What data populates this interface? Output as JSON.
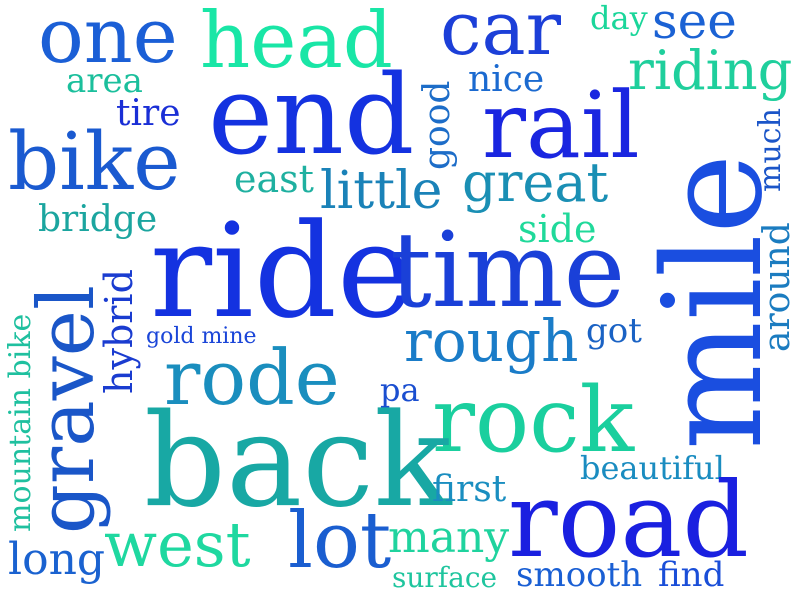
{
  "cloud": {
    "words": [
      {
        "text": "one",
        "color": "#1b5fd6"
      },
      {
        "text": "head",
        "color": "#19e6a6"
      },
      {
        "text": "car",
        "color": "#1c3fd8"
      },
      {
        "text": "day",
        "color": "#1ad69a"
      },
      {
        "text": "see",
        "color": "#1b62d4"
      },
      {
        "text": "riding",
        "color": "#1fcf9c"
      },
      {
        "text": "area",
        "color": "#1bbf9c"
      },
      {
        "text": "nice",
        "color": "#1b6ad0"
      },
      {
        "text": "tire",
        "color": "#1a2fd6"
      },
      {
        "text": "end",
        "color": "#1432e0"
      },
      {
        "text": "good",
        "color": "#1d6dc8"
      },
      {
        "text": "rail",
        "color": "#1a26e0"
      },
      {
        "text": "mile",
        "color": "#1a4ee0"
      },
      {
        "text": "much",
        "color": "#1b55c8"
      },
      {
        "text": "bike",
        "color": "#1a5ad0"
      },
      {
        "text": "east",
        "color": "#1fb0a0"
      },
      {
        "text": "little",
        "color": "#1a82b8"
      },
      {
        "text": "great",
        "color": "#1a8fb4"
      },
      {
        "text": "bridge",
        "color": "#1ba59f"
      },
      {
        "text": "side",
        "color": "#20d99a"
      },
      {
        "text": "ride",
        "color": "#1432e0"
      },
      {
        "text": "time",
        "color": "#1a40d8"
      },
      {
        "text": "around",
        "color": "#1b7cc0"
      },
      {
        "text": "mountain bike",
        "color": "#1fc09f"
      },
      {
        "text": "hybrid",
        "color": "#1a3cd0"
      },
      {
        "text": "gravel",
        "color": "#1a56c8"
      },
      {
        "text": "gold mine",
        "color": "#1a45d8"
      },
      {
        "text": "rough",
        "color": "#1a7cc8"
      },
      {
        "text": "got",
        "color": "#1a62c4"
      },
      {
        "text": "rode",
        "color": "#1a8ebe"
      },
      {
        "text": "pa",
        "color": "#1a4ed0"
      },
      {
        "text": "rock",
        "color": "#1acf9e"
      },
      {
        "text": "back",
        "color": "#18a8a4"
      },
      {
        "text": "beautiful",
        "color": "#1a8cc0"
      },
      {
        "text": "first",
        "color": "#1a8ec0"
      },
      {
        "text": "road",
        "color": "#1a20e0"
      },
      {
        "text": "west",
        "color": "#1fd8a0"
      },
      {
        "text": "lot",
        "color": "#1a5ed0"
      },
      {
        "text": "many",
        "color": "#1fd39e"
      },
      {
        "text": "long",
        "color": "#1a62d0"
      },
      {
        "text": "surface",
        "color": "#1fc59e"
      },
      {
        "text": "smooth",
        "color": "#1a5fd4"
      },
      {
        "text": "find",
        "color": "#1a4ed8"
      }
    ]
  }
}
